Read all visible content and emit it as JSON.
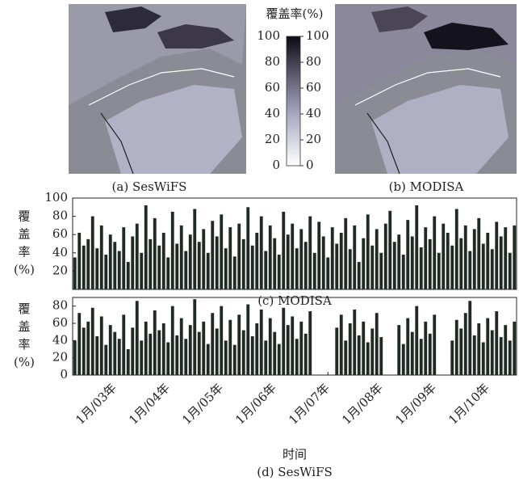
{
  "maps": {
    "title": "覆盖率(%)",
    "captions": [
      "(a) SesWiFS",
      "(b) MODISA"
    ],
    "colorbar_ticks": [
      0,
      20,
      40,
      60,
      80,
      100
    ]
  },
  "chart_data": [
    {
      "type": "bar",
      "caption": "(c) MODISA",
      "y_label": [
        "覆",
        "盖",
        "率",
        "(%)"
      ],
      "color": "#1f2a24",
      "values": [
        35,
        62,
        48,
        55,
        80,
        45,
        70,
        38,
        60,
        52,
        42,
        68,
        30,
        58,
        72,
        40,
        92,
        55,
        78,
        48,
        62,
        35,
        85,
        50,
        70,
        42,
        60,
        88,
        52,
        66,
        40,
        75,
        58,
        82,
        45,
        68,
        36,
        72,
        55,
        90,
        48,
        62,
        80,
        42,
        70,
        56,
        38,
        85,
        60,
        72,
        45,
        66,
        52,
        80,
        40,
        74,
        58,
        35,
        68,
        50,
        62,
        78,
        44,
        70,
        30,
        56,
        82,
        48,
        66,
        40,
        72,
        86,
        52,
        60,
        38,
        76,
        58,
        92,
        46,
        68,
        55,
        80,
        40,
        72,
        62,
        48,
        88,
        56,
        70,
        42,
        66,
        78,
        50,
        62,
        44,
        74,
        58,
        68,
        40,
        70
      ],
      "ylim": [
        0,
        100
      ],
      "yticks": [
        20,
        40,
        60,
        80,
        100
      ]
    },
    {
      "type": "bar",
      "caption": "(d) SesWiFS",
      "y_label": [
        "覆",
        "盖",
        "率",
        "(%)"
      ],
      "x_label": "时间",
      "color": "#1f2a24",
      "categories": [
        null,
        null,
        null,
        null,
        null,
        null,
        null,
        null,
        null,
        "1月/03年",
        null,
        null,
        null,
        null,
        null,
        null,
        null,
        null,
        null,
        null,
        null,
        "1月/04年",
        null,
        null,
        null,
        null,
        null,
        null,
        null,
        null,
        null,
        null,
        null,
        "1月/05年",
        null,
        null,
        null,
        null,
        null,
        null,
        null,
        null,
        null,
        null,
        null,
        "1月/06年",
        null,
        null,
        null,
        null,
        null,
        null,
        null,
        null,
        null,
        null,
        null,
        "1月/07年",
        null,
        null,
        null,
        null,
        null,
        null,
        null,
        null,
        null,
        null,
        null,
        "1月/08年",
        null,
        null,
        null,
        null,
        null,
        null,
        null,
        null,
        null,
        null,
        null,
        "1月/09年",
        null,
        null,
        null,
        null,
        null,
        null,
        null,
        null,
        null,
        null,
        null,
        "1月/10年",
        null,
        null,
        null,
        null,
        null,
        null
      ],
      "values": [
        40,
        72,
        55,
        62,
        78,
        45,
        68,
        35,
        58,
        50,
        42,
        70,
        30,
        55,
        86,
        40,
        62,
        48,
        75,
        52,
        60,
        38,
        80,
        46,
        66,
        42,
        58,
        88,
        50,
        62,
        36,
        72,
        54,
        80,
        40,
        64,
        35,
        70,
        52,
        82,
        45,
        60,
        76,
        40,
        66,
        50,
        36,
        78,
        58,
        68,
        42,
        62,
        48,
        74,
        0,
        0,
        0,
        0,
        0,
        55,
        70,
        40,
        60,
        76,
        46,
        62,
        38,
        54,
        72,
        44,
        0,
        0,
        0,
        58,
        36,
        66,
        50,
        80,
        42,
        62,
        48,
        70,
        0,
        0,
        0,
        40,
        64,
        54,
        72,
        86,
        46,
        60,
        38,
        66,
        52,
        74,
        44,
        58,
        40,
        62
      ],
      "ylim": [
        0,
        90
      ],
      "yticks": [
        0,
        20,
        40,
        60,
        80
      ]
    }
  ]
}
